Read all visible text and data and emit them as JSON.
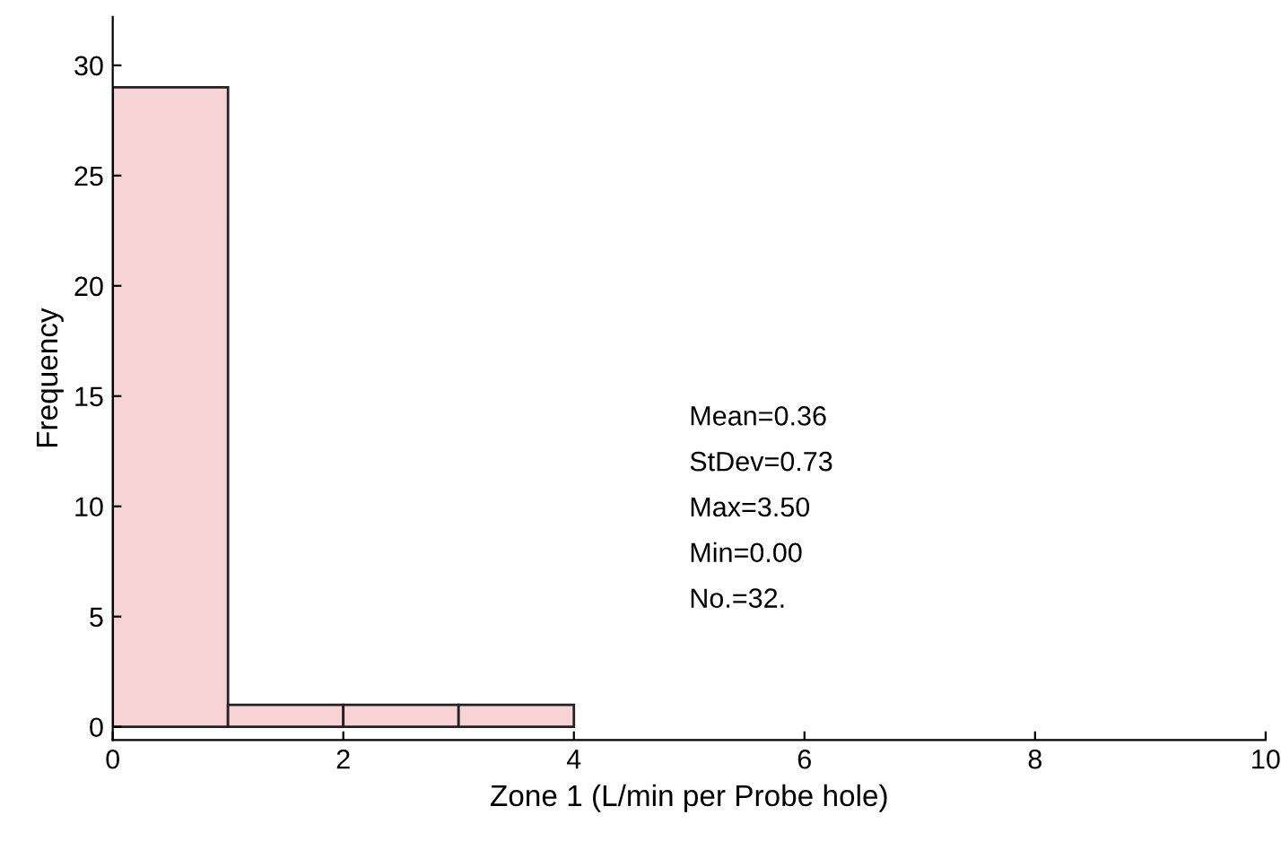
{
  "chart_data": {
    "type": "histogram",
    "xlabel": "Zone 1 (L/min per Probe hole)",
    "ylabel": "Frequency",
    "bins": [
      0,
      1,
      2,
      3,
      4
    ],
    "values": [
      29,
      1,
      1,
      1
    ],
    "color": "#f7d3d6",
    "xlim": [
      0,
      10
    ],
    "xticks": [
      0,
      2,
      4,
      6,
      8,
      10
    ],
    "ylim": [
      -0.6,
      32.2
    ],
    "yticks": [
      0,
      5,
      10,
      15,
      20,
      25,
      30
    ],
    "grid": false,
    "annotations": [
      "Mean=0.36",
      "StDev=0.73",
      "Max=3.50",
      "Min=0.00",
      "No.=32."
    ]
  }
}
